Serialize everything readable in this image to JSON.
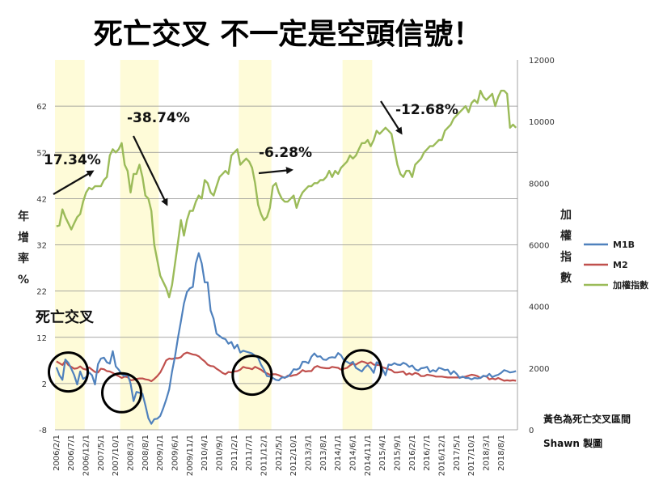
{
  "chart_data": {
    "type": "line",
    "title": "死亡交叉 不一定是空頭信號！",
    "ylabel_left": [
      "年",
      "增",
      "率",
      "%"
    ],
    "ylabel_right": [
      "加",
      "權",
      "指",
      "數"
    ],
    "ylim_left": [
      -8,
      72
    ],
    "ylim_right": [
      0,
      12000
    ],
    "yticks_left": [
      -8,
      2,
      12,
      22,
      32,
      42,
      52,
      62
    ],
    "yticks_right": [
      0,
      2000,
      4000,
      6000,
      8000,
      10000,
      12000
    ],
    "x_start": "2006/2/1",
    "x_count": 156,
    "xtick_labels": [
      "2006/2/1",
      "2006/7/1",
      "2006/12/1",
      "2007/5/1",
      "2007/10/1",
      "2008/3/1",
      "2008/8/1",
      "2009/1/1",
      "2009/6/1",
      "2009/11/1",
      "2010/4/1",
      "2010/9/1",
      "2011/2/1",
      "2011/7/1",
      "2011/12/1",
      "2012/5/1",
      "2012/10/1",
      "2013/3/1",
      "2013/8/1",
      "2014/1/1",
      "2014/6/1",
      "2014/11/1",
      "2015/4/1",
      "2015/9/1",
      "2016/2/1",
      "2016/7/1",
      "2016/12/1",
      "2017/5/1",
      "2017/10/1",
      "2018/3/1",
      "2018/8/1"
    ],
    "legend": [
      "M1B",
      "M2",
      "加權指數"
    ],
    "colors": {
      "M1B": "#4f81bd",
      "M2": "#c0504d",
      "加權指數": "#9bbb59",
      "highlight": "#fefbd8"
    },
    "highlight_ranges": [
      [
        0,
        10
      ],
      [
        22,
        35
      ],
      [
        62,
        73
      ],
      [
        97,
        107
      ]
    ],
    "circles": [
      [
        4,
        4.5
      ],
      [
        22,
        0
      ],
      [
        66,
        3.8
      ],
      [
        103,
        5
      ]
    ],
    "series": {
      "M1B": [
        5.5,
        3.8,
        2.8,
        7.2,
        6.5,
        5.2,
        3.8,
        1.8,
        4.6,
        3.0,
        3.4,
        4.4,
        3.8,
        1.8,
        6.2,
        7.4,
        7.6,
        6.6,
        6.3,
        9.0,
        5.7,
        5.0,
        4.0,
        3.6,
        4.0,
        2.0,
        -1.8,
        0.2,
        0.0,
        -0.2,
        -2.7,
        -5.5,
        -6.7,
        -5.7,
        -5.6,
        -5.0,
        -3.4,
        -1.5,
        0.7,
        4.6,
        7.9,
        12.0,
        15.5,
        19.3,
        21.8,
        22.6,
        22.9,
        28.0,
        30.2,
        28.0,
        23.9,
        23.9,
        17.8,
        16.0,
        12.8,
        12.3,
        11.8,
        11.6,
        10.6,
        11.0,
        9.6,
        10.4,
        8.7,
        9.1,
        8.9,
        8.7,
        8.5,
        8.0,
        7.6,
        6.1,
        5.0,
        3.6,
        3.5,
        3.2,
        2.8,
        2.7,
        3.3,
        3.3,
        3.5,
        4.1,
        5.1,
        5.0,
        5.3,
        6.7,
        6.7,
        6.4,
        7.8,
        8.5,
        7.8,
        7.9,
        7.2,
        7.1,
        7.6,
        7.7,
        7.6,
        8.6,
        8.1,
        7.0,
        6.7,
        6.3,
        6.7,
        5.4,
        5.0,
        4.6,
        5.5,
        6.0,
        5.3,
        4.3,
        6.6,
        6.2,
        5.1,
        3.8,
        6.1,
        6.0,
        6.4,
        6.1,
        6.0,
        6.5,
        6.2,
        5.6,
        5.9,
        5.1,
        4.8,
        5.3,
        5.4,
        5.6,
        4.5,
        4.9,
        4.6,
        5.4,
        5.2,
        4.9,
        5.0,
        4.0,
        4.7,
        4.1,
        3.2,
        3.5,
        3.2,
        3.2,
        2.9,
        3.2,
        3.1,
        3.2,
        3.7,
        3.5,
        4.1,
        3.4,
        3.7,
        3.9,
        4.3,
        4.9,
        4.7,
        4.4,
        4.5,
        4.7
      ],
      "M2": [
        6.8,
        6.4,
        6.0,
        6.9,
        6.0,
        5.6,
        5.2,
        5.3,
        5.7,
        5.2,
        5.0,
        5.5,
        5.0,
        4.5,
        4.4,
        5.2,
        5.1,
        4.7,
        4.6,
        4.3,
        3.9,
        3.6,
        3.2,
        3.5,
        3.4,
        2.7,
        2.8,
        3.0,
        3.1,
        3.1,
        2.9,
        2.8,
        2.5,
        3.0,
        3.6,
        4.4,
        5.6,
        7.0,
        7.4,
        7.3,
        7.5,
        7.5,
        7.7,
        8.4,
        8.7,
        8.5,
        8.3,
        8.2,
        7.9,
        7.3,
        6.8,
        6.1,
        5.8,
        5.7,
        5.2,
        4.8,
        4.3,
        4.0,
        4.5,
        4.4,
        4.6,
        4.7,
        5.0,
        5.6,
        5.4,
        5.3,
        5.1,
        5.6,
        5.3,
        5.0,
        4.5,
        4.2,
        3.9,
        4.0,
        4.0,
        3.8,
        3.5,
        3.2,
        3.7,
        3.6,
        3.8,
        3.9,
        4.3,
        4.9,
        4.6,
        4.7,
        4.7,
        5.5,
        5.8,
        5.5,
        5.4,
        5.3,
        5.3,
        5.6,
        5.5,
        5.4,
        5.0,
        5.2,
        5.4,
        5.9,
        6.3,
        6.1,
        6.5,
        6.8,
        6.6,
        6.3,
        6.6,
        6.1,
        6.0,
        6.0,
        5.5,
        5.3,
        5.1,
        4.9,
        4.4,
        4.4,
        4.5,
        4.6,
        3.9,
        4.2,
        3.9,
        4.3,
        4.1,
        3.6,
        3.6,
        3.9,
        3.8,
        3.7,
        3.5,
        3.5,
        3.5,
        3.4,
        3.3,
        3.3,
        3.3,
        3.3,
        3.3,
        3.4,
        3.5,
        3.7,
        3.9,
        3.8,
        3.6,
        3.2,
        3.6,
        3.6,
        2.9,
        3.1,
        2.9,
        3.2,
        2.9,
        2.6,
        2.7,
        2.6,
        2.7,
        2.6
      ],
      "加權指數": [
        6600,
        6630,
        7150,
        6900,
        6700,
        6500,
        6700,
        6900,
        7000,
        7400,
        7700,
        7850,
        7800,
        7900,
        7900,
        7900,
        8100,
        8200,
        8900,
        9100,
        9000,
        9100,
        9300,
        8600,
        8400,
        7700,
        8300,
        8300,
        8600,
        8200,
        7600,
        7500,
        7100,
        6000,
        5500,
        5000,
        4800,
        4600,
        4300,
        4700,
        5400,
        6100,
        6800,
        6300,
        6800,
        7100,
        7100,
        7400,
        7600,
        7500,
        8100,
        8000,
        7700,
        7600,
        7900,
        8200,
        8300,
        8400,
        8300,
        8900,
        9000,
        9100,
        8600,
        8700,
        8800,
        8700,
        8500,
        8000,
        7300,
        7000,
        6800,
        6900,
        7200,
        7900,
        8000,
        7700,
        7500,
        7400,
        7400,
        7500,
        7600,
        7200,
        7500,
        7700,
        7800,
        7900,
        7900,
        8000,
        8000,
        8100,
        8100,
        8200,
        8400,
        8200,
        8400,
        8300,
        8500,
        8600,
        8700,
        8900,
        8800,
        8900,
        9100,
        9300,
        9300,
        9400,
        9200,
        9400,
        9700,
        9600,
        9700,
        9800,
        9700,
        9600,
        9100,
        8600,
        8300,
        8200,
        8400,
        8400,
        8200,
        8600,
        8700,
        8800,
        9000,
        9100,
        9200,
        9200,
        9300,
        9400,
        9400,
        9700,
        9800,
        9900,
        10100,
        10200,
        10300,
        10400,
        10500,
        10300,
        10600,
        10700,
        10600,
        11000,
        10800,
        10700,
        10800,
        10900,
        10500,
        10800,
        11000,
        11000,
        10900,
        9800,
        9900,
        9800
      ]
    },
    "annotations": [
      "17.34%",
      "-38.74%",
      "-6.28%",
      "-12.68%"
    ],
    "death_cross_label": "死亡交叉",
    "note_highlight": "黃色為死亡交叉區間",
    "credit": "Shawn 製圖"
  }
}
